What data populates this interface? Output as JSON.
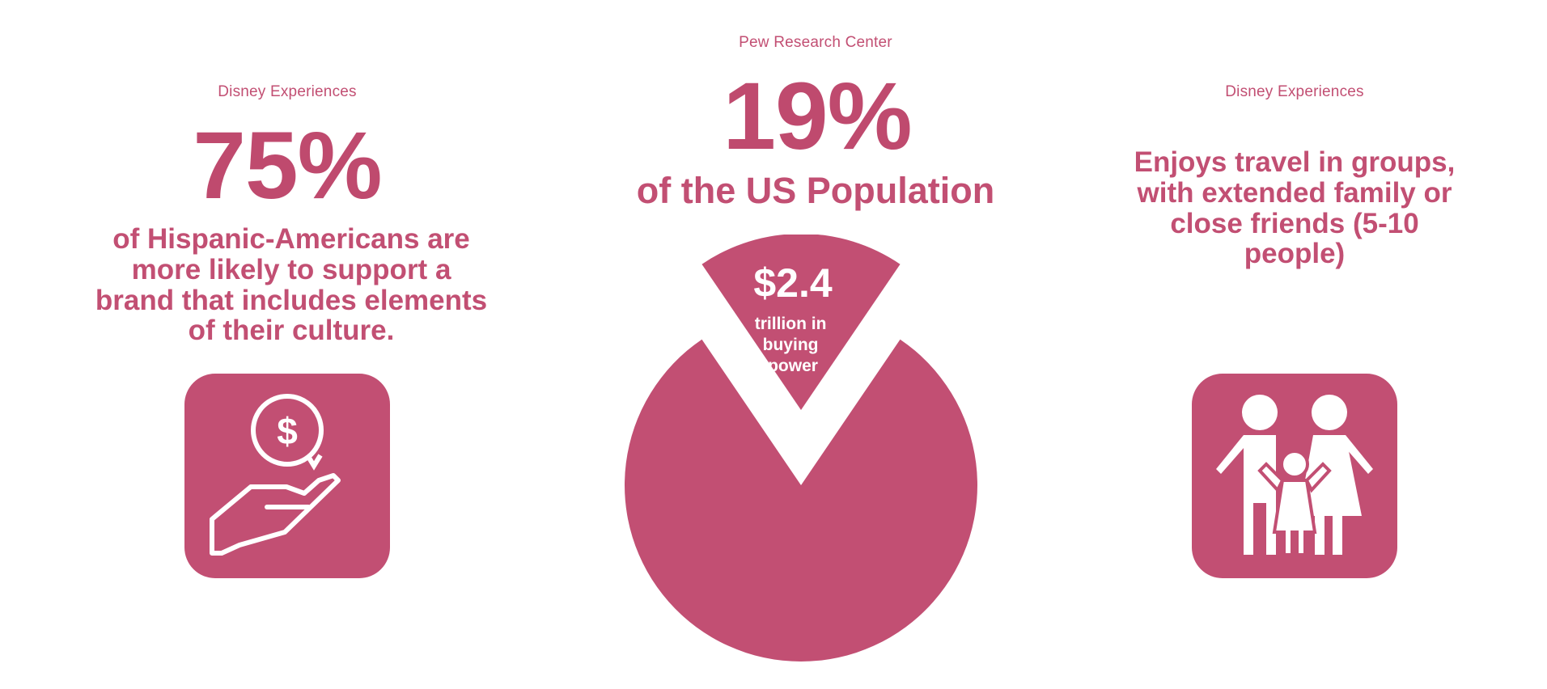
{
  "left": {
    "source": "Disney Experiences",
    "stat": "75%",
    "description": "of Hispanic-Americans are more likely to support a brand that includes elements of their culture.",
    "icon": "money-hand-icon"
  },
  "center": {
    "source": "Pew Research Center",
    "stat": "19%",
    "population_label": "of the US Population",
    "icon": "pie-chart"
  },
  "right": {
    "source": "Disney Experiences",
    "description": "Enjoys travel in groups, with extended family or close friends (5-10 people)",
    "icon": "family-icon"
  },
  "chart_data": {
    "type": "pie",
    "title": "",
    "slices": [
      {
        "label": "19% of the US Population",
        "value": 19
      },
      {
        "label": "",
        "value": 81
      }
    ],
    "slice_annotation": {
      "value_text": "$2.4",
      "label_text": "trillion in buying power"
    }
  },
  "colors": {
    "primary": "#c24f73",
    "background": "#ffffff",
    "icon_fg": "#ffffff"
  }
}
